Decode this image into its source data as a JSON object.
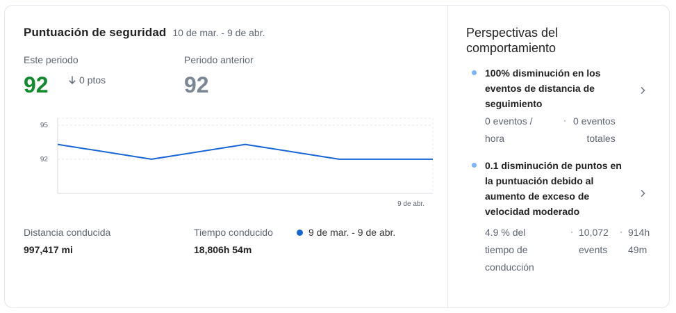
{
  "score": {
    "title": "Puntuación de seguridad",
    "date_range": "10 de mar. - 9 de abr.",
    "this_period_label": "Este periodo",
    "this_period_value": "92",
    "delta_label": "0 ptos",
    "prev_period_label": "Periodo anterior",
    "prev_period_value": "92",
    "colors": {
      "current": "#138a2e",
      "previous": "#7b8794",
      "line": "#1765d4"
    }
  },
  "chart_data": {
    "type": "line",
    "title": "",
    "xlabel": "",
    "ylabel": "",
    "y_ticks": [
      "95",
      "92"
    ],
    "x_ticks": [
      "9 de abr."
    ],
    "ylim": [
      89,
      95.6
    ],
    "grid": true,
    "series": [
      {
        "name": "9 de mar. - 9 de abr.",
        "values": [
          93.3,
          92.0,
          93.3,
          92.0,
          92.0
        ]
      }
    ]
  },
  "stats": {
    "distance_label": "Distancia conducida",
    "distance_value": "997,417 mi",
    "time_label": "Tiempo conducido",
    "time_value": "18,806h 54m",
    "legend_label": "9 de mar. - 9 de abr."
  },
  "insights": {
    "title_line1": "Perspectivas del",
    "title_line2": "comportamiento",
    "items": [
      {
        "title_lines": [
          "100% disminución en los",
          "eventos de distancia de",
          "seguimiento"
        ],
        "sub": [
          [
            "0 eventos /",
            "hora"
          ],
          [
            "0 eventos",
            "totales"
          ]
        ],
        "icon": "chevron-right-icon"
      },
      {
        "title_lines": [
          "0.1 disminución de puntos en",
          "la puntuación debido al",
          "aumento de exceso de",
          "velocidad moderado"
        ],
        "sub": [
          [
            "4.9 % del",
            "tiempo de",
            "conducción"
          ],
          [
            "10,072",
            "events"
          ],
          [
            "914h",
            "49m"
          ]
        ],
        "icon": "chevron-right-icon"
      }
    ]
  }
}
